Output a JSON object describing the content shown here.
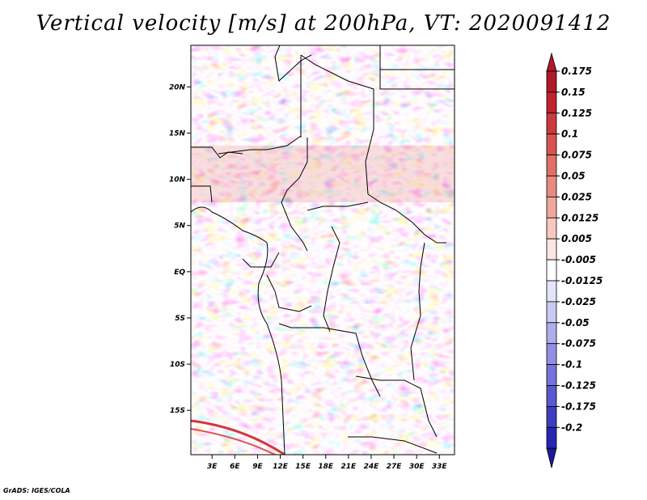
{
  "chart_data": {
    "type": "heatmap",
    "title": "Vertical velocity [m/s] at 200hPa, VT: 2020091412",
    "variable": "Vertical velocity",
    "units": "m/s",
    "level": "200hPa",
    "valid_time": "2020091412",
    "x_ticks": [
      "3E",
      "6E",
      "9E",
      "12E",
      "15E",
      "18E",
      "21E",
      "24E",
      "27E",
      "30E",
      "33E"
    ],
    "x_tick_values": [
      3,
      6,
      9,
      12,
      15,
      18,
      21,
      24,
      27,
      30,
      33
    ],
    "y_ticks": [
      "20N",
      "15N",
      "10N",
      "5N",
      "EQ",
      "5S",
      "10S",
      "15S"
    ],
    "y_tick_values": [
      20,
      15,
      10,
      5,
      0,
      -5,
      -10,
      -15
    ],
    "xlim": [
      0.2,
      35.0
    ],
    "ylim": [
      -19.8,
      24.5
    ],
    "colorbar": {
      "labels": [
        "0.175",
        "0.15",
        "0.125",
        "0.1",
        "0.075",
        "0.05",
        "0.025",
        "0.0125",
        "0.005",
        "-0.005",
        "-0.0125",
        "-0.025",
        "-0.05",
        "-0.075",
        "-0.1",
        "-0.125",
        "-0.175",
        "-0.2"
      ],
      "colors": [
        "#b2182b",
        "#c0232f",
        "#cc3a3e",
        "#d6534f",
        "#e06f67",
        "#e88a80",
        "#f0a89e",
        "#f7c8c0",
        "#fce6e2",
        "#ffffff",
        "#e4e4fa",
        "#c9c9f3",
        "#aeaeec",
        "#9090e4",
        "#7474da",
        "#5858cf",
        "#3d3dc2",
        "#2626b2",
        "#1a1a99"
      ]
    }
  },
  "credit": "GrADS: IGES/COLA"
}
